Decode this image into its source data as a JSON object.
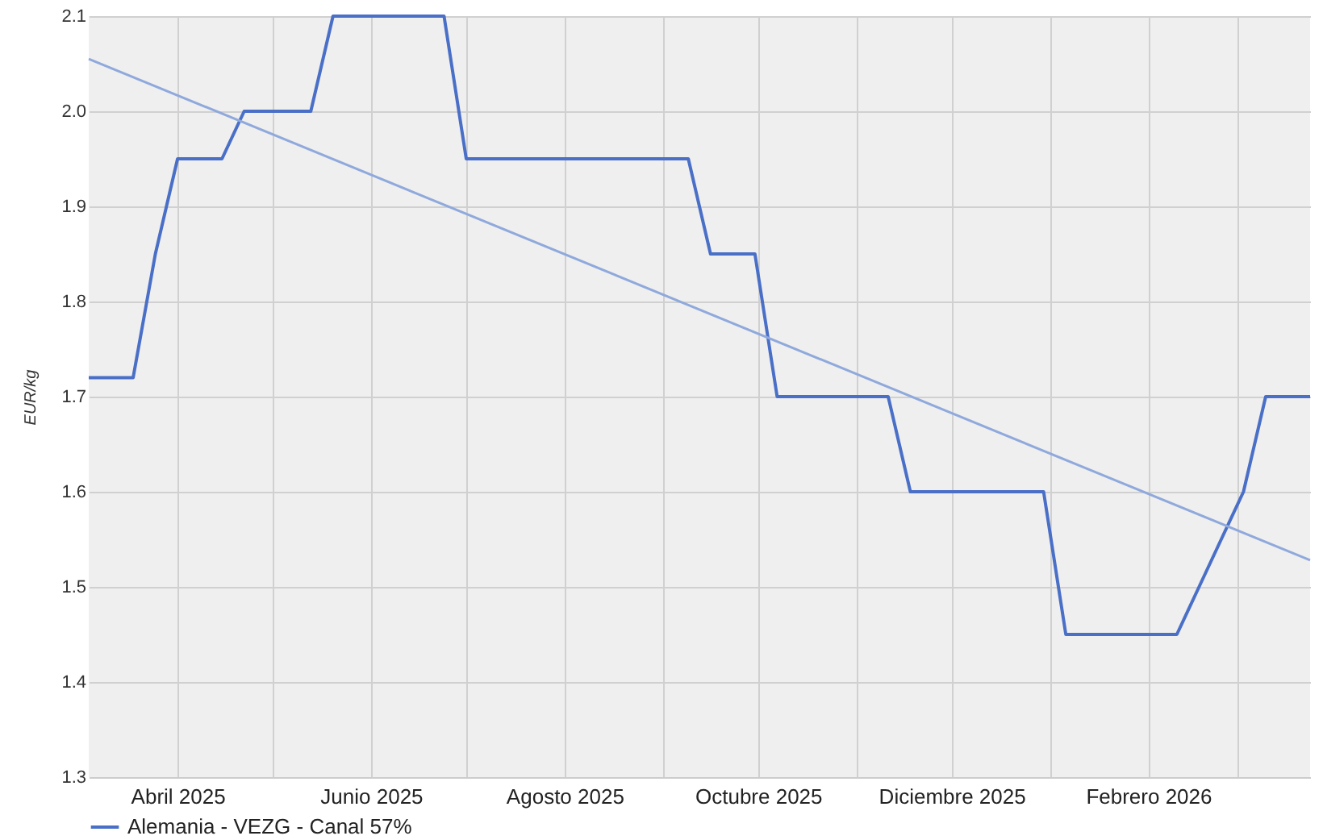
{
  "chart_data": {
    "type": "line",
    "ylabel": "EUR/kg",
    "x": [
      "2025-03-04",
      "2025-03-18",
      "2025-03-25",
      "2025-04-01",
      "2025-04-15",
      "2025-04-22",
      "2025-05-13",
      "2025-05-20",
      "2025-06-24",
      "2025-07-01",
      "2025-09-09",
      "2025-09-16",
      "2025-09-30",
      "2025-10-07",
      "2025-11-11",
      "2025-11-18",
      "2025-12-30",
      "2026-01-06",
      "2026-02-10",
      "2026-02-17",
      "2026-02-24",
      "2026-03-03",
      "2026-03-10",
      "2026-03-24"
    ],
    "series": [
      {
        "name": "Alemania - VEZG - Canal 57%",
        "color": "#4a6fc7",
        "values": [
          1.72,
          1.72,
          1.85,
          1.95,
          1.95,
          2.0,
          2.0,
          2.1,
          2.1,
          1.95,
          1.95,
          1.85,
          1.85,
          1.7,
          1.7,
          1.6,
          1.6,
          1.45,
          1.45,
          1.5,
          1.55,
          1.6,
          1.7,
          1.7
        ]
      },
      {
        "type": "line",
        "color": "#8fa9dc",
        "x": [
          "2025-03-04",
          "2026-03-24"
        ],
        "values": [
          2.055,
          1.528
        ]
      }
    ],
    "xlim": [
      "2025-03-04",
      "2026-03-24"
    ],
    "xticks": [
      {
        "value": "2025-04-01",
        "label": "Abril 2025"
      },
      {
        "value": "2025-05-01",
        "label": null
      },
      {
        "value": "2025-06-01",
        "label": "Junio 2025"
      },
      {
        "value": "2025-07-01",
        "label": null
      },
      {
        "value": "2025-08-01",
        "label": "Agosto 2025"
      },
      {
        "value": "2025-09-01",
        "label": null
      },
      {
        "value": "2025-10-01",
        "label": "Octubre 2025"
      },
      {
        "value": "2025-11-01",
        "label": null
      },
      {
        "value": "2025-12-01",
        "label": "Diciembre 2025"
      },
      {
        "value": "2026-01-01",
        "label": null
      },
      {
        "value": "2026-02-01",
        "label": "Febrero 2026"
      },
      {
        "value": "2026-03-01",
        "label": null
      }
    ],
    "ylim": [
      1.3,
      2.1
    ],
    "yticks": [
      1.3,
      1.4,
      1.5,
      1.6,
      1.7,
      1.8,
      1.9,
      {
        "value": 2.0,
        "label": "2.0"
      },
      2.1
    ],
    "grid": true,
    "legend": "bottom",
    "line_style": "solid",
    "marker": "none"
  }
}
